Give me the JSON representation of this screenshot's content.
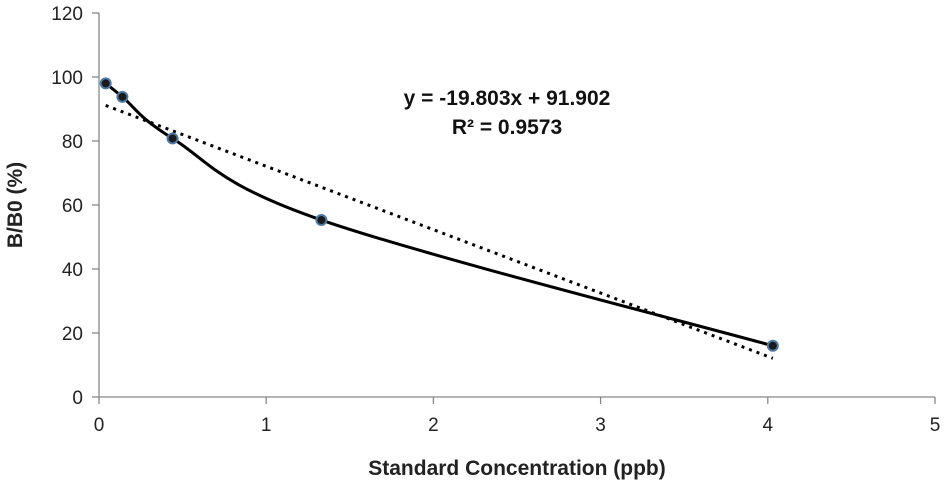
{
  "chart_data": {
    "type": "scatter",
    "title": "",
    "xlabel": "Standard Concentration (ppb)",
    "ylabel": "B/B0 (%)",
    "xlim": [
      0,
      5
    ],
    "ylim": [
      0,
      120
    ],
    "x_ticks": [
      0,
      1,
      2,
      3,
      4,
      5
    ],
    "y_ticks": [
      0,
      20,
      40,
      60,
      80,
      100,
      120
    ],
    "grid": false,
    "legend": "none",
    "points": [
      {
        "x": 0.04,
        "y": 98.0
      },
      {
        "x": 0.14,
        "y": 93.8
      },
      {
        "x": 0.44,
        "y": 80.8
      },
      {
        "x": 1.33,
        "y": 55.3
      },
      {
        "x": 4.03,
        "y": 16.0
      }
    ],
    "trendline": {
      "kind": "linear",
      "slope": -19.803,
      "intercept": 91.902,
      "x_range": [
        0.04,
        4.03
      ],
      "style": "dotted"
    },
    "annotations": {
      "equation": "y = -19.803x + 91.902",
      "r_squared": "R² = 0.9573"
    },
    "colors": {
      "marker_fill": "#1a1a1a",
      "marker_edge": "#4a7ba7",
      "line": "#000000"
    }
  }
}
